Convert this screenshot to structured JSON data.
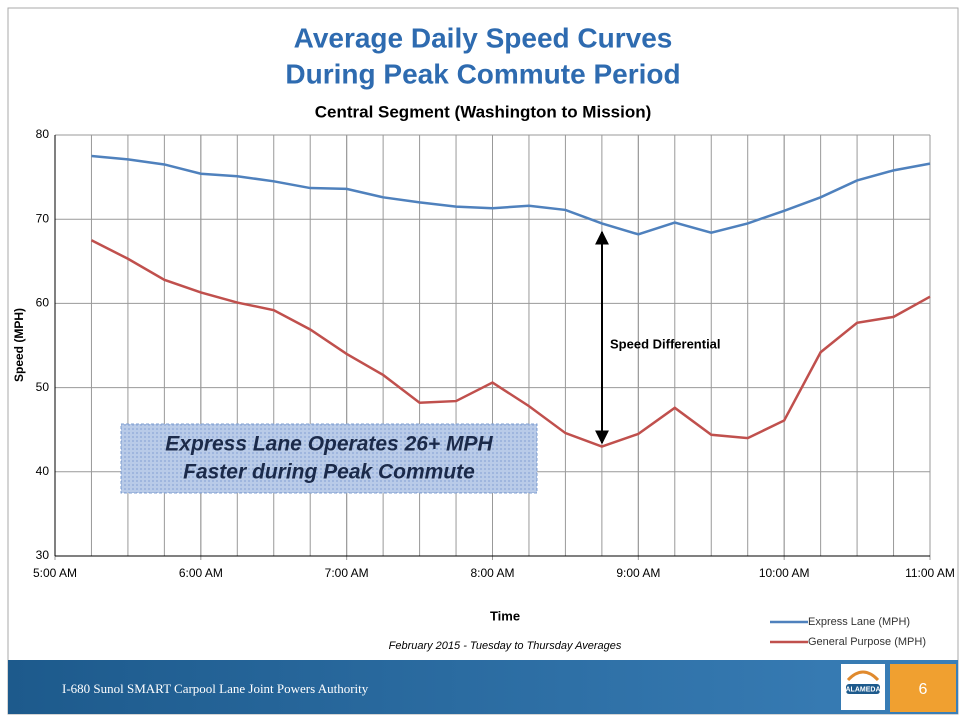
{
  "chart_data": {
    "type": "line",
    "title": [
      "Average Daily Speed Curves",
      "During Peak Commute Period"
    ],
    "subtitle": "Central Segment (Washington to Mission)",
    "y_label": "Speed (MPH)",
    "x_label": "Time",
    "note": "February 2015 - Tuesday to Thursday Averages",
    "annotation": "Speed Differential",
    "callout": [
      "Express Lane Operates 26+ MPH",
      "Faster during Peak Commute"
    ],
    "x": [
      5.25,
      5.5,
      5.75,
      6,
      6.25,
      6.5,
      6.75,
      7,
      7.25,
      7.5,
      7.75,
      8,
      8.25,
      8.5,
      8.75,
      9,
      9.25,
      9.5,
      9.75,
      10,
      10.25,
      10.5,
      10.75,
      11
    ],
    "series": [
      {
        "name": "Express Lane (MPH)",
        "color": "#4f81bd",
        "values": [
          77.5,
          77.1,
          76.5,
          75.4,
          75.1,
          74.5,
          73.7,
          73.6,
          72.6,
          72.0,
          71.5,
          71.3,
          71.6,
          71.1,
          69.5,
          68.2,
          69.6,
          68.4,
          69.5,
          71.0,
          72.6,
          74.6,
          75.8,
          76.6
        ]
      },
      {
        "name": "General Purpose (MPH)",
        "color": "#c0504d",
        "values": [
          67.5,
          65.3,
          62.8,
          61.3,
          60.1,
          59.2,
          56.9,
          54.0,
          51.5,
          48.2,
          48.4,
          50.6,
          47.8,
          44.6,
          43.0,
          44.5,
          47.6,
          44.4,
          44.0,
          46.1,
          54.2,
          57.7,
          58.4,
          60.8
        ]
      }
    ],
    "xlim": [
      5,
      11
    ],
    "xticks": [
      {
        "value": 5,
        "label": "5:00 AM"
      },
      {
        "value": 6,
        "label": "6:00 AM"
      },
      {
        "value": 7,
        "label": "7:00 AM"
      },
      {
        "value": 8,
        "label": "8:00 AM"
      },
      {
        "value": 9,
        "label": "9:00 AM"
      },
      {
        "value": 10,
        "label": "10:00 AM"
      },
      {
        "value": 11,
        "label": "11:00 AM"
      }
    ],
    "ylim": [
      30,
      80
    ],
    "yticks": [
      30,
      40,
      50,
      60,
      70,
      80
    ],
    "grid": true
  },
  "footer": {
    "text": "I-680 Sunol SMART Carpool Lane Joint Powers Authority",
    "logo": "ALAMEDA",
    "page": "6"
  }
}
